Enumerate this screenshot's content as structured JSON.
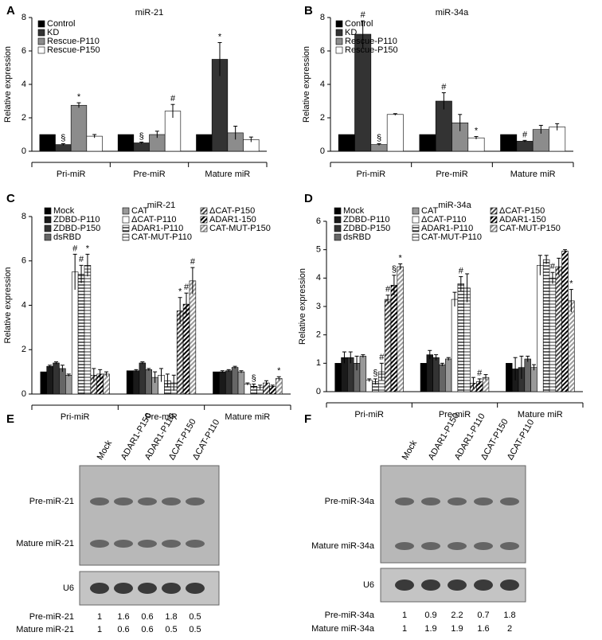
{
  "chart_data": [
    {
      "type": "bar",
      "panel": "A",
      "title": "miR-21",
      "ylabel": "Relative expression",
      "categories": [
        "Pri-miR",
        "Pre-miR",
        "Mature miR"
      ],
      "ylim": [
        0,
        8
      ],
      "yticks": [
        0,
        2,
        4,
        6,
        8
      ],
      "series": [
        {
          "name": "Control",
          "color": "#000000",
          "values": [
            1,
            1,
            1
          ],
          "errors": [
            null,
            null,
            null
          ]
        },
        {
          "name": "KD",
          "color": "#333333",
          "values": [
            0.4,
            0.5,
            5.5
          ],
          "errors": [
            0.05,
            0.05,
            1.0
          ],
          "marks": [
            "§",
            "§",
            "*"
          ]
        },
        {
          "name": "Rescue-P110",
          "color": "#8c8c8c",
          "values": [
            2.75,
            1.0,
            1.1
          ],
          "errors": [
            0.15,
            0.2,
            0.4
          ],
          "marks": [
            "*",
            null,
            null
          ]
        },
        {
          "name": "Rescue-P150",
          "color": "#ffffff",
          "values": [
            0.9,
            2.4,
            0.7
          ],
          "errors": [
            0.1,
            0.4,
            0.15
          ],
          "marks": [
            null,
            "#",
            null
          ]
        }
      ]
    },
    {
      "type": "bar",
      "panel": "B",
      "title": "miR-34a",
      "ylabel": "Relative expression",
      "categories": [
        "Pri-miR",
        "Pre-miR",
        "Mature miR"
      ],
      "ylim": [
        0,
        8
      ],
      "yticks": [
        0,
        2,
        4,
        6,
        8
      ],
      "series": [
        {
          "name": "Control",
          "color": "#000000",
          "values": [
            1,
            1,
            1
          ],
          "errors": [
            null,
            null,
            null
          ]
        },
        {
          "name": "KD",
          "color": "#333333",
          "values": [
            7.0,
            3.0,
            0.6
          ],
          "errors": [
            0.8,
            0.5,
            0.05
          ],
          "marks": [
            "#",
            "#",
            "#"
          ]
        },
        {
          "name": "Rescue-P110",
          "color": "#8c8c8c",
          "values": [
            0.4,
            1.7,
            1.3
          ],
          "errors": [
            0.05,
            0.5,
            0.25
          ],
          "marks": [
            "§",
            null,
            null
          ]
        },
        {
          "name": "Rescue-P150",
          "color": "#ffffff",
          "values": [
            2.2,
            0.8,
            1.45
          ],
          "errors": [
            0.05,
            0.08,
            0.2
          ],
          "marks": [
            null,
            "*",
            null
          ]
        }
      ]
    },
    {
      "type": "bar",
      "panel": "C",
      "title": "miR-21",
      "ylabel": "Relative expression",
      "categories": [
        "Pri-miR",
        "Pre-miR",
        "Mature miR"
      ],
      "ylim": [
        0,
        8
      ],
      "yticks": [
        0,
        2,
        4,
        6,
        8
      ],
      "series": [
        {
          "name": "Mock",
          "color": "#000000",
          "values": [
            1,
            1.05,
            1.0
          ],
          "errors": [
            null,
            null,
            null
          ]
        },
        {
          "name": "ZDBD-P110",
          "color": "#1a1a1a",
          "values": [
            1.25,
            1.05,
            1.0
          ],
          "errors": [
            0.05,
            0.05,
            0.05
          ]
        },
        {
          "name": "ZDBD-P150",
          "color": "#333333",
          "values": [
            1.4,
            1.4,
            1.05
          ],
          "errors": [
            0.05,
            0.05,
            0.05
          ]
        },
        {
          "name": "dsRBD",
          "color": "#666666",
          "values": [
            1.15,
            1.1,
            1.2
          ],
          "errors": [
            0.15,
            0.05,
            0.05
          ]
        },
        {
          "name": "CAT",
          "color": "#999999",
          "values": [
            0.85,
            0.75,
            1.0
          ],
          "errors": [
            0.05,
            0.25,
            0.05
          ]
        },
        {
          "name": "ΔCAT-P110",
          "color": "#ffffff",
          "values": [
            5.5,
            0.85,
            0.45
          ],
          "errors": [
            0.8,
            0.3,
            0.05
          ],
          "marks": [
            "#",
            null,
            null
          ]
        },
        {
          "name": "ADAR1-P110",
          "color": "#000000",
          "pattern": "hlines",
          "values": [
            5.4,
            0.6,
            0.35
          ],
          "errors": [
            0.4,
            0.3,
            0.1
          ],
          "marks": [
            "#",
            null,
            "§"
          ]
        },
        {
          "name": "CAT-MUT-P110",
          "color": "#555555",
          "pattern": "hlines",
          "values": [
            5.8,
            0.5,
            0.3
          ],
          "errors": [
            0.5,
            0.35,
            0.1
          ],
          "marks": [
            "*",
            null,
            null
          ]
        },
        {
          "name": "ΔCAT-P150",
          "color": "#444444",
          "pattern": "diag",
          "values": [
            0.85,
            3.75,
            0.5
          ],
          "errors": [
            0.3,
            0.6,
            0.1
          ],
          "marks": [
            null,
            "*",
            null
          ]
        },
        {
          "name": "ADAR1-150",
          "color": "#000000",
          "pattern": "diag",
          "values": [
            0.9,
            4.05,
            0.35
          ],
          "errors": [
            0.2,
            0.5,
            0.05
          ],
          "marks": [
            null,
            "#",
            null
          ]
        },
        {
          "name": "CAT-MUT-P150",
          "color": "#999999",
          "pattern": "diag",
          "values": [
            0.9,
            5.1,
            0.7
          ],
          "errors": [
            0.1,
            0.6,
            0.08
          ],
          "marks": [
            null,
            "#",
            "*"
          ]
        }
      ]
    },
    {
      "type": "bar",
      "panel": "D",
      "title": "miR-34a",
      "ylabel": "Relative expression",
      "categories": [
        "Pri-miR",
        "Pre-miR",
        "Mature miR"
      ],
      "ylim": [
        0,
        6
      ],
      "yticks": [
        0,
        1,
        2,
        3,
        4,
        5,
        6
      ],
      "series": [
        {
          "name": "Mock",
          "color": "#000000",
          "values": [
            1,
            1,
            1
          ],
          "errors": [
            null,
            null,
            null
          ]
        },
        {
          "name": "ZDBD-P110",
          "color": "#1a1a1a",
          "values": [
            1.2,
            1.3,
            0.8
          ],
          "errors": [
            0.2,
            0.15,
            0.4
          ]
        },
        {
          "name": "ZDBD-P150",
          "color": "#333333",
          "values": [
            1.2,
            1.2,
            0.85
          ],
          "errors": [
            0.2,
            0.1,
            0.4
          ]
        },
        {
          "name": "dsRBD",
          "color": "#666666",
          "values": [
            1.0,
            0.95,
            1.15
          ],
          "errors": [
            0.25,
            0.05,
            0.1
          ]
        },
        {
          "name": "CAT",
          "color": "#999999",
          "values": [
            1.25,
            1.15,
            0.85
          ],
          "errors": [
            0.05,
            0.05,
            0.1
          ]
        },
        {
          "name": "ΔCAT-P110",
          "color": "#ffffff",
          "values": [
            0.4,
            3.25,
            4.45
          ],
          "errors": [
            0.05,
            0.25,
            0.35
          ]
        },
        {
          "name": "ADAR1-P110",
          "color": "#000000",
          "pattern": "hlines",
          "values": [
            0.35,
            3.8,
            4.65
          ],
          "errors": [
            0.1,
            0.25,
            0.15
          ],
          "marks": [
            "§",
            "#",
            null
          ]
        },
        {
          "name": "CAT-MUT-P110",
          "color": "#555555",
          "pattern": "hlines",
          "values": [
            0.7,
            3.65,
            4.0
          ],
          "errors": [
            0.3,
            0.5,
            0.2
          ],
          "marks": [
            "#",
            null,
            "#"
          ]
        },
        {
          "name": "ΔCAT-P150",
          "color": "#444444",
          "pattern": "diag",
          "values": [
            3.25,
            0.3,
            4.4
          ],
          "errors": [
            0.15,
            0.2,
            0.3
          ],
          "marks": [
            "#",
            null,
            null
          ]
        },
        {
          "name": "ADAR1-150",
          "color": "#000000",
          "pattern": "diag",
          "values": [
            3.75,
            0.35,
            4.95
          ],
          "errors": [
            0.35,
            0.1,
            0.05
          ],
          "marks": [
            "§",
            "#",
            null
          ]
        },
        {
          "name": "CAT-MUT-P150",
          "color": "#999999",
          "pattern": "diag",
          "values": [
            4.4,
            0.5,
            3.2
          ],
          "errors": [
            0.1,
            0.1,
            0.4
          ],
          "marks": [
            "*",
            null,
            "*"
          ]
        }
      ]
    }
  ],
  "blots": [
    {
      "panel": "E",
      "lanes": [
        "Mock",
        "ADAR1-P150",
        "ADAR1-P110",
        "ΔCAT-P150",
        "ΔCAT-P110"
      ],
      "bands": [
        "Pre-miR-21",
        "Mature miR-21"
      ],
      "loading": "U6",
      "quantification": [
        {
          "label": "Pre-miR-21",
          "values": [
            "1",
            "1.6",
            "0.6",
            "1.8",
            "0.5"
          ]
        },
        {
          "label": "Mature miR-21",
          "values": [
            "1",
            "0.6",
            "0.6",
            "0.5",
            "0.5"
          ]
        }
      ]
    },
    {
      "panel": "F",
      "lanes": [
        "Mock",
        "ADAR1-P150",
        "ADAR1-P110",
        "ΔCAT-P150",
        "ΔCAT-P110"
      ],
      "bands": [
        "Pre-miR-34a",
        "Mature miR-34a"
      ],
      "loading": "U6",
      "quantification": [
        {
          "label": "Pre-miR-34a",
          "values": [
            "1",
            "0.9",
            "2.2",
            "0.7",
            "1.8"
          ]
        },
        {
          "label": "Mature miR-34a",
          "values": [
            "1",
            "1.9",
            "1.9",
            "1.6",
            "2"
          ]
        }
      ]
    }
  ]
}
